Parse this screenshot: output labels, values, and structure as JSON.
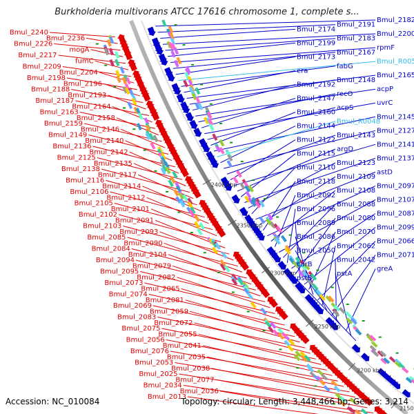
{
  "header": {
    "title": "Burkholderia multivorans ATCC 17616 chromosome 1, complete s..."
  },
  "footer": {
    "accession": "Accession: NC_010084",
    "summary": "Topology: circular; Length: 3,448,466 bp; Genes: 3,214"
  },
  "colors": {
    "reverse_strand": "#e00000",
    "forward_strand": "#0000cc",
    "rna": "#33bbee",
    "backbone": "#888888"
  },
  "scale_ticks": [
    {
      "label": "2400 kbp"
    },
    {
      "label": "2350 kbp"
    },
    {
      "label": "2300 kbp"
    },
    {
      "label": "2250 kbp"
    },
    {
      "label": "2200 kbp"
    },
    {
      "label": "2150 kbp"
    }
  ],
  "genes_left": [
    {
      "label": "Bmul_2240"
    },
    {
      "label": "Bmul_2236"
    },
    {
      "label": "Bmul_2226"
    },
    {
      "label": "mogA"
    },
    {
      "label": "Bmul_2217"
    },
    {
      "label": "fumC"
    },
    {
      "label": "Bmul_2209"
    },
    {
      "label": "Bmul_2204"
    },
    {
      "label": "Bmul_2198"
    },
    {
      "label": "Bmul_2196"
    },
    {
      "label": "Bmul_2188"
    },
    {
      "label": "Bmul_2193"
    },
    {
      "label": "Bmul_2187"
    },
    {
      "label": "Bmul_2164"
    },
    {
      "label": "Bmul_2163"
    },
    {
      "label": "Bmul_2158"
    },
    {
      "label": "Bmul_2159"
    },
    {
      "label": "Bmul_2146"
    },
    {
      "label": "Bmul_2149"
    },
    {
      "label": "Bmul_2140"
    },
    {
      "label": "Bmul_2136"
    },
    {
      "label": "Bmul_2142"
    },
    {
      "label": "Bmul_2125"
    },
    {
      "label": "Bmul_2135"
    },
    {
      "label": "Bmul_2138"
    },
    {
      "label": "Bmul_2117"
    },
    {
      "label": "Bmul_2116"
    },
    {
      "label": "Bmul_2114"
    },
    {
      "label": "Bmul_2106"
    },
    {
      "label": "Bmul_2112"
    },
    {
      "label": "Bmul_2105"
    },
    {
      "label": "Bmul_2101"
    },
    {
      "label": "Bmul_2102"
    },
    {
      "label": "Bmul_2091"
    },
    {
      "label": "Bmul_2103"
    },
    {
      "label": "Bmul_2093"
    },
    {
      "label": "Bmul_2085"
    },
    {
      "label": "Bmul_2090"
    },
    {
      "label": "Bmul_2084"
    },
    {
      "label": "Bmul_2104"
    },
    {
      "label": "Bmul_2094"
    },
    {
      "label": "Bmul_2079"
    },
    {
      "label": "Bmul_2095"
    },
    {
      "label": "Bmul_2082"
    },
    {
      "label": "Bmul_2073"
    },
    {
      "label": "Bmul_2065"
    },
    {
      "label": "Bmul_2074"
    },
    {
      "label": "Bmul_2081"
    },
    {
      "label": "Bmul_2069"
    },
    {
      "label": "Bmul_2059"
    },
    {
      "label": "Bmul_2083"
    },
    {
      "label": "Bmul_2072"
    },
    {
      "label": "Bmul_2075"
    },
    {
      "label": "Bmul_2055"
    },
    {
      "label": "Bmul_2056"
    },
    {
      "label": "Bmul_2041"
    },
    {
      "label": "Bmul_2076"
    },
    {
      "label": "Bmul_2035"
    },
    {
      "label": "Bmul_2053"
    },
    {
      "label": "Bmul_2038"
    },
    {
      "label": "Bmul_2025"
    },
    {
      "label": "Bmul_2077"
    },
    {
      "label": "Bmul_2034"
    },
    {
      "label": "Bmul_2036"
    },
    {
      "label": "Bmul_2013"
    }
  ],
  "genes_right": [
    {
      "label": "Bmul_2182",
      "color": "blue"
    },
    {
      "label": "Bmul_2191",
      "color": "blue"
    },
    {
      "label": "Bmul_2174",
      "color": "blue"
    },
    {
      "label": "Bmul_2200",
      "color": "blue"
    },
    {
      "label": "Bmul_2183",
      "color": "blue"
    },
    {
      "label": "Bmul_2199",
      "color": "blue"
    },
    {
      "label": "rpmF",
      "color": "blue"
    },
    {
      "label": "Bmul_2167",
      "color": "blue"
    },
    {
      "label": "Bmul_2173",
      "color": "blue"
    },
    {
      "label": "Bmul_R0051",
      "color": "cyan"
    },
    {
      "label": "fabG",
      "color": "blue"
    },
    {
      "label": "era",
      "color": "blue"
    },
    {
      "label": "Bmul_2165",
      "color": "blue"
    },
    {
      "label": "Bmul_2148",
      "color": "blue"
    },
    {
      "label": "Bmul_2192",
      "color": "blue"
    },
    {
      "label": "acpP",
      "color": "blue"
    },
    {
      "label": "recO",
      "color": "blue"
    },
    {
      "label": "Bmul_2147",
      "color": "blue"
    },
    {
      "label": "uvrC",
      "color": "blue"
    },
    {
      "label": "acpS",
      "color": "blue"
    },
    {
      "label": "Bmul_2160",
      "color": "blue"
    },
    {
      "label": "Bmul_2145",
      "color": "blue"
    },
    {
      "label": "Bmul_R0048",
      "color": "cyan"
    },
    {
      "label": "Bmul_2144",
      "color": "blue"
    },
    {
      "label": "Bmul_2127",
      "color": "blue"
    },
    {
      "label": "Bmul_2143",
      "color": "blue"
    },
    {
      "label": "Bmul_2122",
      "color": "blue"
    },
    {
      "label": "Bmul_2141",
      "color": "blue"
    },
    {
      "label": "argD",
      "color": "blue"
    },
    {
      "label": "Bmul_2115",
      "color": "blue"
    },
    {
      "label": "Bmul_2137",
      "color": "blue"
    },
    {
      "label": "Bmul_2123",
      "color": "blue"
    },
    {
      "label": "Bmul_2110",
      "color": "blue"
    },
    {
      "label": "astD",
      "color": "blue"
    },
    {
      "label": "Bmul_2109",
      "color": "blue"
    },
    {
      "label": "Bmul_2118",
      "color": "blue"
    },
    {
      "label": "Bmul_2097",
      "color": "blue"
    },
    {
      "label": "Bmul_2108",
      "color": "blue"
    },
    {
      "label": "Bmul_2092",
      "color": "blue"
    },
    {
      "label": "Bmul_2107",
      "color": "blue"
    },
    {
      "label": "Bmul_2088",
      "color": "blue"
    },
    {
      "label": "Bmul_2096",
      "color": "blue"
    },
    {
      "label": "Bmul_2087",
      "color": "blue"
    },
    {
      "label": "Bmul_2080",
      "color": "blue"
    },
    {
      "label": "Bmul_2089",
      "color": "blue"
    },
    {
      "label": "Bmul_2099",
      "color": "blue"
    },
    {
      "label": "Bmul_2070",
      "color": "blue"
    },
    {
      "label": "Bmul_2086",
      "color": "blue"
    },
    {
      "label": "Bmul_2066",
      "color": "blue"
    },
    {
      "label": "Bmul_2062",
      "color": "blue"
    },
    {
      "label": "Bmul_2050",
      "color": "blue"
    },
    {
      "label": "Bmul_2071",
      "color": "blue"
    },
    {
      "label": "Bmul_2042",
      "color": "blue"
    },
    {
      "label": "carB",
      "color": "blue"
    },
    {
      "label": "greA",
      "color": "blue"
    },
    {
      "label": "pstA",
      "color": "blue"
    },
    {
      "label": "pstB",
      "color": "blue"
    }
  ]
}
